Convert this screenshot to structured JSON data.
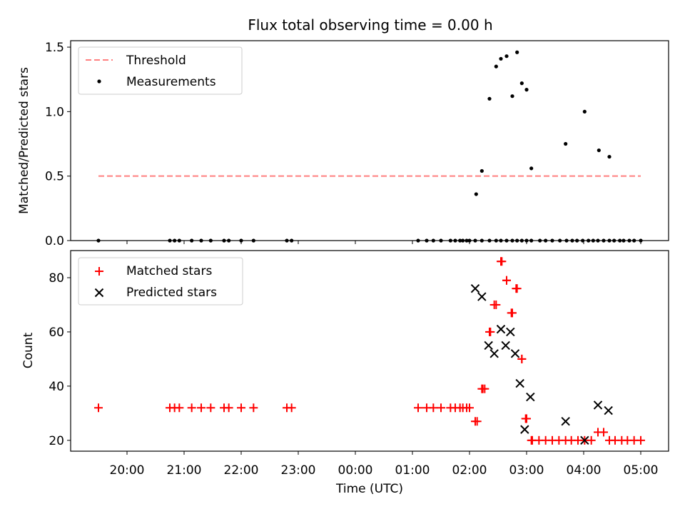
{
  "colors": {
    "threshold": "#ff7f7f",
    "measurement": "#000000",
    "matched": "#ff0000",
    "predicted": "#000000"
  },
  "chart_data": [
    {
      "type": "scatter",
      "title": "Flux total observing time = 0.00 h",
      "xlabel": "",
      "ylabel": "Matched/Predicted stars",
      "ylim": [
        0,
        1.55
      ],
      "yticks": [
        "0.0",
        "0.5",
        "1.0",
        "1.5"
      ],
      "legend_position": "upper-left",
      "threshold": {
        "name": "Threshold",
        "value": 0.5,
        "x_start": "19:30",
        "x_end": "05:00"
      },
      "series": [
        {
          "name": "Measurements",
          "x": [
            "19:30",
            "20:45",
            "20:50",
            "20:55",
            "21:08",
            "21:18",
            "21:28",
            "21:42",
            "21:47",
            "22:00",
            "22:13",
            "22:48",
            "22:53",
            "01:06",
            "01:15",
            "01:22",
            "01:30",
            "01:40",
            "01:45",
            "01:50",
            "01:53",
            "01:57",
            "02:00",
            "02:06",
            "02:13",
            "02:21",
            "02:28",
            "02:33",
            "02:39",
            "02:45",
            "02:50",
            "02:55",
            "03:00",
            "03:05",
            "03:14",
            "03:20",
            "03:27",
            "03:35",
            "03:42",
            "03:48",
            "03:53",
            "03:59",
            "04:05",
            "04:10",
            "04:15",
            "04:21",
            "04:27",
            "04:32",
            "04:38",
            "04:42",
            "04:48",
            "04:53",
            "05:00",
            "02:07",
            "02:13",
            "02:21",
            "02:28",
            "02:33",
            "02:39",
            "02:45",
            "02:50",
            "02:55",
            "03:00",
            "03:05",
            "03:41",
            "04:01",
            "04:16",
            "04:27"
          ],
          "y": [
            0,
            0,
            0,
            0,
            0,
            0,
            0,
            0,
            0,
            0,
            0,
            0,
            0,
            0,
            0,
            0,
            0,
            0,
            0,
            0,
            0,
            0,
            0,
            0,
            0,
            0,
            0,
            0,
            0,
            0,
            0,
            0,
            0,
            0,
            0,
            0,
            0,
            0,
            0,
            0,
            0,
            0,
            0,
            0,
            0,
            0,
            0,
            0,
            0,
            0,
            0,
            0,
            0,
            0.36,
            0.54,
            1.1,
            1.35,
            1.41,
            1.43,
            1.12,
            1.46,
            1.22,
            1.17,
            0.56,
            0.75,
            1.0,
            0.7,
            0.65
          ]
        }
      ]
    },
    {
      "type": "scatter",
      "title": "",
      "xlabel": "Time (UTC)",
      "ylabel": "Count",
      "ylim": [
        16,
        90
      ],
      "yticks": [
        "20",
        "40",
        "60",
        "80"
      ],
      "xticks": [
        "20:00",
        "21:00",
        "22:00",
        "23:00",
        "00:00",
        "01:00",
        "02:00",
        "03:00",
        "04:00",
        "05:00"
      ],
      "legend_position": "upper-left",
      "series": [
        {
          "name": "Matched stars",
          "x": [
            "19:30",
            "20:45",
            "20:50",
            "20:55",
            "21:08",
            "21:18",
            "21:28",
            "21:42",
            "21:47",
            "22:00",
            "22:13",
            "22:48",
            "22:53",
            "01:06",
            "01:15",
            "01:22",
            "01:30",
            "01:40",
            "01:45",
            "01:50",
            "01:53",
            "01:57",
            "02:00",
            "02:06",
            "02:13",
            "02:21",
            "02:28",
            "02:33",
            "02:39",
            "02:45",
            "02:50",
            "02:55",
            "03:00",
            "03:05",
            "02:08",
            "02:14",
            "02:16",
            "02:22",
            "02:26",
            "02:34",
            "02:39",
            "02:44",
            "02:49",
            "02:55",
            "02:59",
            "03:06",
            "03:13",
            "03:20",
            "03:27",
            "03:34",
            "03:41",
            "03:47",
            "03:54",
            "04:01",
            "04:08",
            "04:15",
            "04:21",
            "04:27",
            "04:33",
            "04:40",
            "04:46",
            "04:53",
            "05:00"
          ],
          "y": [
            32,
            32,
            32,
            32,
            32,
            32,
            32,
            32,
            32,
            32,
            32,
            32,
            32,
            32,
            32,
            32,
            32,
            32,
            32,
            32,
            32,
            32,
            32,
            27,
            39,
            60,
            70,
            86,
            79,
            67,
            76,
            50,
            28,
            20,
            27,
            39,
            39,
            60,
            70,
            86,
            79,
            67,
            76,
            50,
            28,
            20,
            20,
            20,
            20,
            20,
            20,
            20,
            20,
            20,
            20,
            23,
            23,
            20,
            20,
            20,
            20,
            20,
            20
          ]
        },
        {
          "name": "Predicted stars",
          "x": [
            "02:06",
            "02:13",
            "02:20",
            "02:26",
            "02:33",
            "02:38",
            "02:43",
            "02:48",
            "02:53",
            "02:58",
            "03:04",
            "03:41",
            "04:01",
            "04:15",
            "04:26"
          ],
          "y": [
            76,
            73,
            55,
            52,
            61,
            55,
            60,
            52,
            41,
            24,
            36,
            27,
            20,
            33,
            31
          ]
        }
      ]
    }
  ]
}
